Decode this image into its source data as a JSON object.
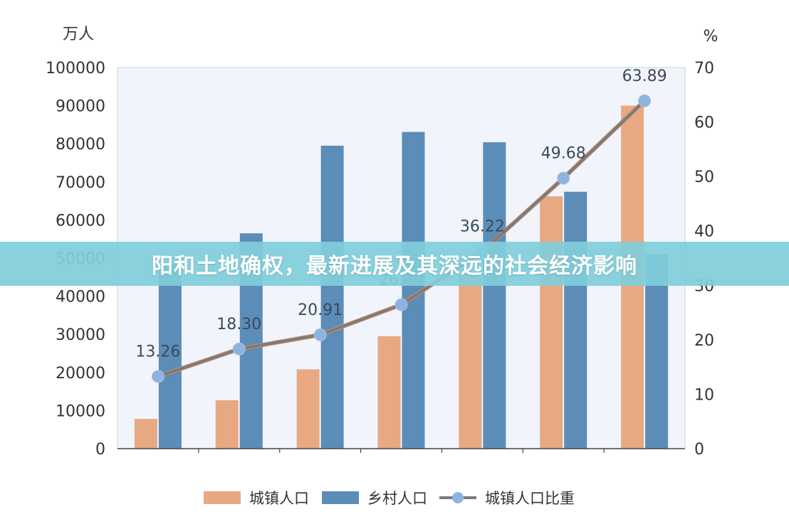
{
  "banner": {
    "title": "阳和土地确权，最新进展及其深远的社会经济影响"
  },
  "colors": {
    "urban": "#e8a882",
    "rural": "#5b8db8",
    "line": "#7a7a7a",
    "marker": "#8fb3e0",
    "plot_bg": "#f1f4fb",
    "banner_bg": "#80cdda"
  },
  "chart_data": {
    "type": "bar",
    "title": "",
    "y_left_unit": "万人",
    "y_right_unit": "%",
    "ylim_left": [
      0,
      100000
    ],
    "ylim_right": [
      0,
      70
    ],
    "yticks_left": [
      "100000",
      "90000",
      "80000",
      "70000",
      "60000",
      "50000",
      "40000",
      "30000",
      "20000",
      "10000",
      "0"
    ],
    "yticks_right": [
      "70",
      "60",
      "50",
      "40",
      "30",
      "20",
      "10",
      "0"
    ],
    "grid": false,
    "legend_position": "bottom",
    "series": [
      {
        "name": "城镇人口",
        "type": "bar",
        "axis": "left",
        "color": "#e8a882",
        "values": [
          7800,
          12700,
          20800,
          29500,
          45900,
          66200,
          90000
        ]
      },
      {
        "name": "乡村人口",
        "type": "bar",
        "axis": "left",
        "color": "#5b8db8",
        "values": [
          48400,
          56500,
          79500,
          83100,
          80400,
          67400,
          51000
        ]
      },
      {
        "name": "城镇人口比重",
        "type": "line",
        "axis": "right",
        "color": "#7a7a7a",
        "values": [
          13.26,
          18.3,
          20.91,
          26.44,
          36.22,
          49.68,
          63.89
        ],
        "labels": [
          "13.26",
          "18.30",
          "20.91",
          "26.44",
          "36.22",
          "49.68",
          "63.89"
        ]
      }
    ]
  }
}
